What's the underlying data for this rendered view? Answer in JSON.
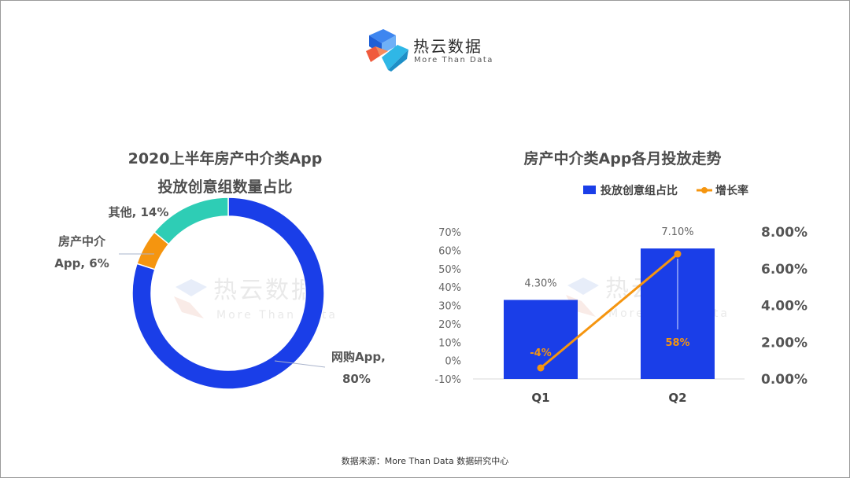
{
  "brand": {
    "name_cn": "热云数据",
    "name_en": "More Than Data"
  },
  "watermark": {
    "text_cn": "热云数据",
    "text_en": "More Than Data"
  },
  "source": "数据来源：More Than Data 数据研究中心",
  "colors": {
    "blue": "#1a3ee8",
    "orange": "#f5950f",
    "teal": "#2ecdb5",
    "line": "#f5950f"
  },
  "chart_data": [
    {
      "type": "pie",
      "variant": "donut",
      "title_line1": "2020上半年房产中介类App",
      "title_line2": "投放创意组数量占比",
      "slices": [
        {
          "name": "网购App",
          "value": 80,
          "color": "#1a3ee8",
          "label_line1": "网购App,",
          "label_line2": "80%"
        },
        {
          "name": "房产中介App",
          "value": 6,
          "color": "#f5950f",
          "label_line1": "房产中介",
          "label_line2": "App, 6%"
        },
        {
          "name": "其他",
          "value": 14,
          "color": "#2ecdb5",
          "label_line1": "其他, 14%",
          "label_line2": ""
        }
      ]
    },
    {
      "type": "bar",
      "title": "房产中介类App各月投放走势",
      "categories": [
        "Q1",
        "Q2"
      ],
      "series": [
        {
          "name": "投放创意组占比",
          "type": "bar",
          "axis": "right",
          "values": [
            4.3,
            7.1
          ],
          "labels": [
            "4.30%",
            "7.10%"
          ],
          "color": "#1a3ee8"
        },
        {
          "name": "增长率",
          "type": "line",
          "axis": "left",
          "values": [
            -4,
            58
          ],
          "labels": [
            "-4%",
            "58%"
          ],
          "color": "#f5950f"
        }
      ],
      "left_axis": {
        "ticks": [
          "70%",
          "60%",
          "50%",
          "40%",
          "30%",
          "20%",
          "10%",
          "0%",
          "-10%"
        ],
        "range": [
          -10,
          70
        ]
      },
      "right_axis": {
        "ticks": [
          "8.00%",
          "6.00%",
          "4.00%",
          "2.00%",
          "0.00%"
        ],
        "range": [
          0,
          8
        ]
      },
      "legend_position": "top-right"
    }
  ]
}
